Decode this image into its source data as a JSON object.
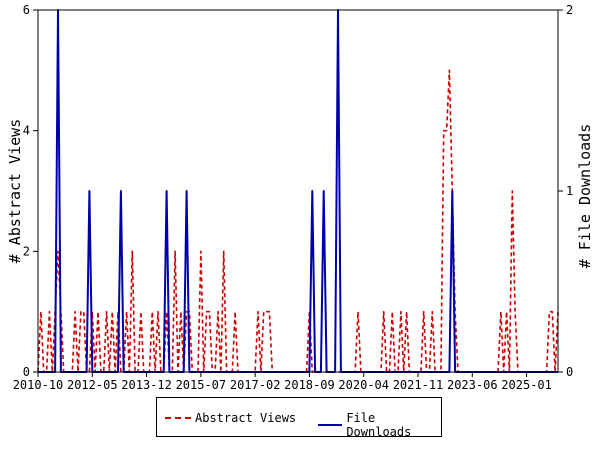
{
  "chart_data": {
    "type": "line",
    "x_tick_labels": [
      "2010-10",
      "2012-05",
      "2013-12",
      "2015-07",
      "2017-02",
      "2018-09",
      "2020-04",
      "2021-11",
      "2023-06",
      "2025-01"
    ],
    "y_left": {
      "label": "# Abstract Views",
      "range": [
        0,
        6
      ],
      "ticks": [
        "0",
        "2",
        "4",
        "6"
      ]
    },
    "y_right": {
      "label": "# File Downloads",
      "range": [
        0,
        2
      ],
      "ticks": [
        "0",
        "1",
        "2"
      ]
    },
    "x_range_months": [
      0,
      182
    ],
    "grid": false,
    "legend_position": "bottom",
    "series": [
      {
        "name": "Abstract Views",
        "axis": "left",
        "color": "#cc0000",
        "style": "dashed",
        "values": [
          0,
          1,
          0,
          0,
          1,
          0,
          1,
          2,
          1,
          0,
          0,
          0,
          0,
          1,
          0,
          1,
          1,
          0,
          0,
          1,
          0,
          1,
          0,
          0,
          1,
          0,
          1,
          0,
          1,
          0,
          0,
          1,
          0,
          2,
          0,
          0,
          1,
          0,
          0,
          0,
          1,
          0,
          1,
          0,
          0,
          1,
          0,
          0,
          2,
          0,
          1,
          0,
          1,
          1,
          0,
          0,
          0,
          2,
          0,
          1,
          1,
          0,
          0,
          1,
          0,
          2,
          0,
          0,
          0,
          1,
          0,
          0,
          0,
          0,
          0,
          0,
          0,
          1,
          0,
          1,
          1,
          1,
          0,
          0,
          0,
          0,
          0,
          0,
          0,
          0,
          0,
          0,
          0,
          0,
          0,
          1,
          0,
          0,
          0,
          0,
          0,
          0,
          0,
          0,
          0,
          0,
          0,
          0,
          0,
          0,
          0,
          0,
          1,
          0,
          0,
          0,
          0,
          0,
          0,
          0,
          0,
          1,
          0,
          0,
          1,
          0,
          0,
          1,
          0,
          1,
          0,
          0,
          0,
          0,
          0,
          1,
          0,
          0,
          1,
          0,
          0,
          0,
          4,
          4,
          5,
          3,
          1,
          0,
          0,
          0,
          0,
          0,
          0,
          0,
          0,
          0,
          0,
          0,
          0,
          0,
          0,
          0,
          1,
          0,
          1,
          0,
          3,
          1,
          0,
          0,
          0,
          0,
          0,
          0,
          0,
          0,
          0,
          0,
          0,
          1,
          1,
          0,
          1
        ]
      },
      {
        "name": "File Downloads",
        "axis": "right",
        "color": "#0000aa",
        "style": "solid",
        "values": [
          0,
          0,
          0,
          0,
          0,
          0,
          0,
          2,
          0,
          0,
          0,
          0,
          0,
          0,
          0,
          0,
          0,
          0,
          1,
          0,
          0,
          0,
          0,
          0,
          0,
          0,
          0,
          0,
          0,
          1,
          0,
          0,
          0,
          0,
          0,
          0,
          0,
          0,
          0,
          0,
          0,
          0,
          0,
          0,
          0,
          1,
          0,
          0,
          0,
          0,
          0,
          0,
          1,
          0,
          0,
          0,
          0,
          0,
          0,
          0,
          0,
          0,
          0,
          0,
          0,
          0,
          0,
          0,
          0,
          0,
          0,
          0,
          0,
          0,
          0,
          0,
          0,
          0,
          0,
          0,
          0,
          0,
          0,
          0,
          0,
          0,
          0,
          0,
          0,
          0,
          0,
          0,
          0,
          0,
          0,
          0,
          1,
          0,
          0,
          0,
          1,
          0,
          0,
          0,
          0,
          2,
          0,
          0,
          0,
          0,
          0,
          0,
          0,
          0,
          0,
          0,
          0,
          0,
          0,
          0,
          0,
          0,
          0,
          0,
          0,
          0,
          0,
          0,
          0,
          0,
          0,
          0,
          0,
          0,
          0,
          0,
          0,
          0,
          0,
          0,
          0,
          0,
          0,
          0,
          0,
          1,
          0,
          0,
          0,
          0,
          0,
          0,
          0,
          0,
          0,
          0,
          0,
          0,
          0,
          0,
          0,
          0,
          0,
          0,
          0,
          0,
          0,
          0,
          0,
          0,
          0,
          0,
          0,
          0,
          0,
          0,
          0,
          0,
          0,
          0,
          0,
          0,
          0
        ]
      }
    ]
  },
  "legend": {
    "abstract_label": "Abstract Views",
    "download_label": "File Downloads"
  }
}
